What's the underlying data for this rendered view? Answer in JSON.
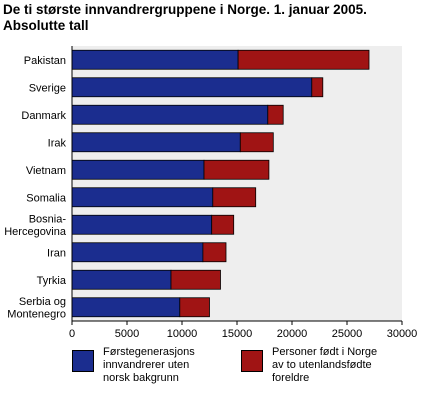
{
  "title_line1": "De ti største innvandrergruppene i Norge. 1. januar 2005.",
  "title_line2": "Absolutte tall",
  "chart_data": {
    "type": "bar",
    "orientation": "horizontal",
    "stacked": true,
    "categories": [
      [
        "Pakistan"
      ],
      [
        "Sverige"
      ],
      [
        "Danmark"
      ],
      [
        "Irak"
      ],
      [
        "Vietnam"
      ],
      [
        "Somalia"
      ],
      [
        "Bosnia-",
        "Hercegovina"
      ],
      [
        "Iran"
      ],
      [
        "Tyrkia"
      ],
      [
        "Serbia og",
        "Montenegro"
      ]
    ],
    "series": [
      {
        "name": "Førstegenerasjons innvandrerer uten norsk bakgrunn",
        "color": "#1b2d8f",
        "values": [
          15100,
          21800,
          17800,
          15300,
          12000,
          12800,
          12700,
          11900,
          9000,
          9800
        ]
      },
      {
        "name": "Personer født i Norge av to utenlandsfødte foreldre",
        "color": "#a01414",
        "values": [
          11900,
          1000,
          1400,
          3000,
          5900,
          3900,
          2000,
          2100,
          4500,
          2700
        ]
      }
    ],
    "xlim": [
      0,
      30000
    ],
    "xticks": [
      "0",
      "5000",
      "10000",
      "15000",
      "20000",
      "25000",
      "30000"
    ],
    "xtick_values": [
      0,
      5000,
      10000,
      15000,
      20000,
      25000,
      30000
    ],
    "grid": false,
    "legend_position": "bottom"
  },
  "legend": [
    {
      "lines": [
        "Førstegenerasjons",
        "innvandrerer uten",
        "norsk bakgrunn"
      ],
      "color": "#1b2d8f"
    },
    {
      "lines": [
        "Personer født i Norge",
        "av to utenlandsfødte",
        "foreldre"
      ],
      "color": "#a01414"
    }
  ]
}
